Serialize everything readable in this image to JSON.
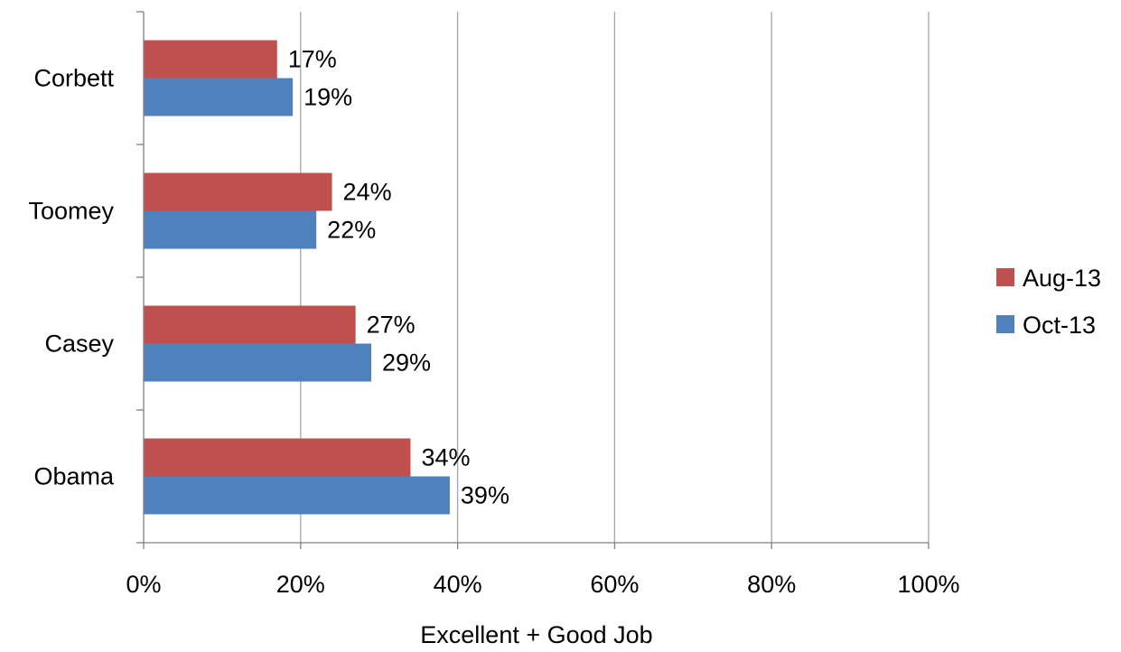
{
  "chart_data": {
    "type": "bar",
    "orientation": "horizontal",
    "categories": [
      "Obama",
      "Casey",
      "Toomey",
      "Corbett"
    ],
    "series": [
      {
        "name": "Oct-13",
        "values": [
          39,
          29,
          22,
          19
        ],
        "color": "#4f81bd"
      },
      {
        "name": "Aug-13",
        "values": [
          34,
          27,
          24,
          17
        ],
        "color": "#c0504d"
      }
    ],
    "data_labels": [
      [
        "39%",
        "29%",
        "22%",
        "19%"
      ],
      [
        "34%",
        "27%",
        "24%",
        "17%"
      ]
    ],
    "xticks": [
      "0%",
      "20%",
      "40%",
      "60%",
      "80%",
      "100%"
    ],
    "xlim": [
      0,
      100
    ],
    "xlabel": "Excellent + Good Job",
    "ylabel": "",
    "title": "",
    "grid": true,
    "legend_position": "right",
    "legend_order": [
      "Aug-13",
      "Oct-13"
    ]
  }
}
